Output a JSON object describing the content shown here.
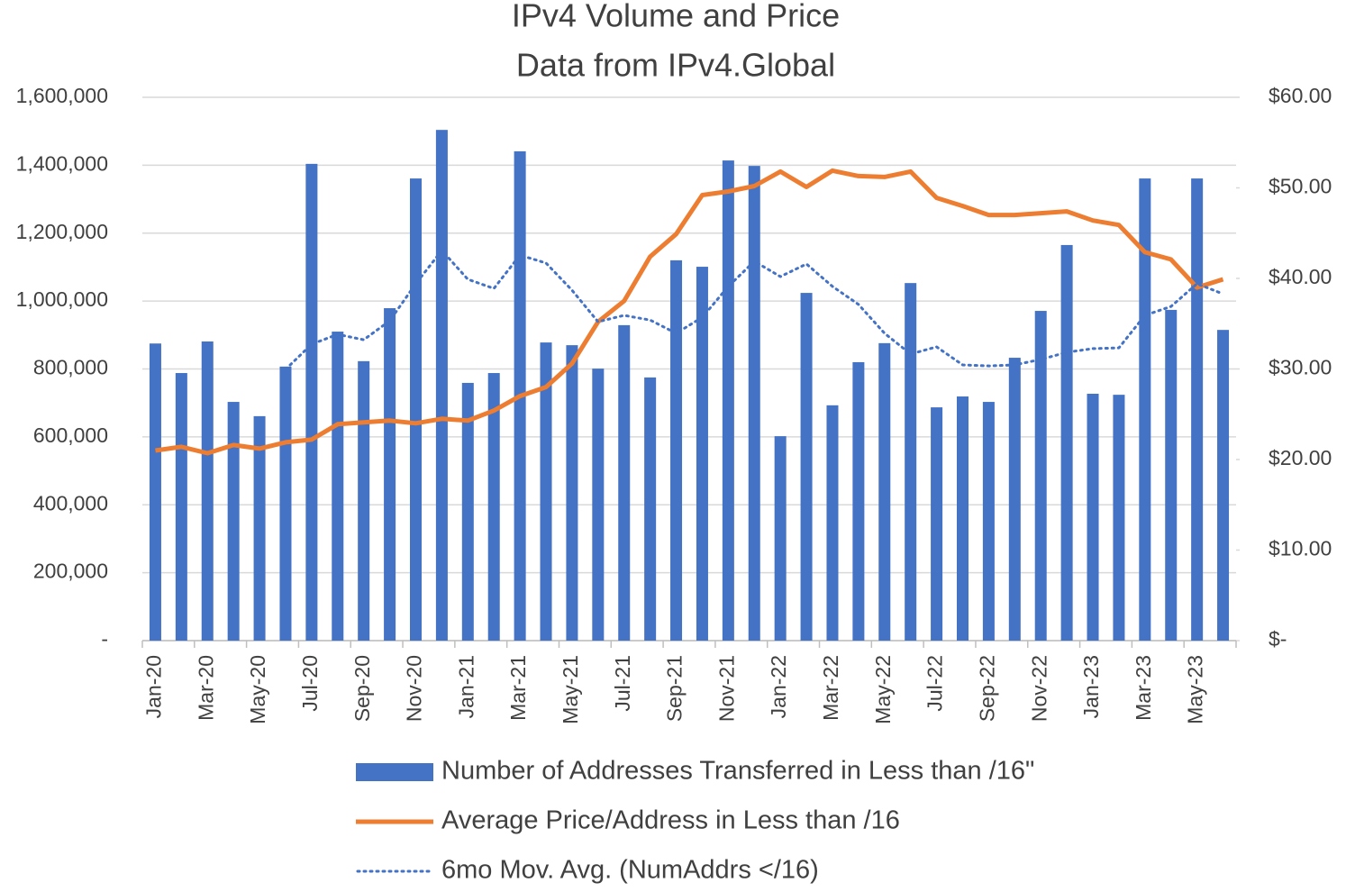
{
  "chart_data": {
    "type": "bar_line",
    "title": "IPv4 Volume and Price",
    "subtitle": "Data from IPv4.Global",
    "categories": [
      "Jan-20",
      null,
      "Mar-20",
      null,
      "May-20",
      null,
      "Jul-20",
      null,
      "Sep-20",
      null,
      "Nov-20",
      null,
      "Jan-21",
      null,
      "Mar-21",
      null,
      "May-21",
      null,
      "Jul-21",
      null,
      "Sep-21",
      null,
      "Nov-21",
      null,
      "Jan-22",
      null,
      "Mar-22",
      null,
      "May-22",
      null,
      "Jul-22",
      null,
      "Sep-22",
      null,
      "Nov-22",
      null,
      "Jan-23",
      null,
      "Mar-23",
      null,
      "May-23",
      null
    ],
    "series": [
      {
        "name": "Number of Addresses Transferred in Less than /16\"",
        "type": "bar",
        "color": "#4472c4",
        "values": [
          875000,
          788000,
          881000,
          703000,
          661000,
          807000,
          1404000,
          910000,
          823000,
          979000,
          1361000,
          1504000,
          759000,
          788000,
          1441000,
          878000,
          870000,
          801000,
          929000,
          775000,
          1120000,
          1101000,
          1414000,
          1398000,
          602000,
          1024000,
          693000,
          820000,
          876000,
          1053000,
          687000,
          719000,
          703000,
          833000,
          971000,
          1165000,
          727000,
          724000,
          1361000,
          974000,
          1361000,
          915000
        ]
      },
      {
        "name": "Average Price/Address in Less than /16",
        "type": "line",
        "axis": "y2",
        "color": "#ed7d31",
        "values": [
          21.0,
          21.4,
          20.7,
          21.6,
          21.2,
          21.9,
          22.2,
          23.9,
          24.1,
          24.3,
          24.0,
          24.5,
          24.3,
          25.4,
          27.0,
          28.0,
          30.6,
          35.2,
          37.5,
          42.4,
          44.9,
          49.2,
          49.6,
          50.2,
          51.8,
          50.1,
          51.9,
          51.3,
          51.2,
          51.8,
          48.9,
          48.0,
          47.0,
          47.0,
          47.2,
          47.4,
          46.4,
          45.9,
          42.9,
          42.1,
          39.0,
          39.9
        ]
      },
      {
        "name": "6mo Mov. Avg. (NumAddrs </16)",
        "type": "dotted",
        "color": "#4472c4",
        "values": [
          null,
          null,
          null,
          null,
          null,
          799000,
          873000,
          902000,
          886000,
          942000,
          1051000,
          1149000,
          1064000,
          1037000,
          1135000,
          1112000,
          1032000,
          939000,
          958000,
          944000,
          905000,
          952000,
          1043000,
          1117000,
          1072000,
          1109000,
          1043000,
          990000,
          905000,
          844000,
          865000,
          812000,
          809000,
          812000,
          828000,
          849000,
          860000,
          862000,
          958000,
          984000,
          1051000,
          1021000
        ]
      }
    ],
    "ylim": [
      0,
      1600000
    ],
    "yticks": [
      {
        "value": 0,
        "label": "-"
      },
      {
        "value": 200000,
        "label": "200,000"
      },
      {
        "value": 400000,
        "label": "400,000"
      },
      {
        "value": 600000,
        "label": "600,000"
      },
      {
        "value": 800000,
        "label": "800,000"
      },
      {
        "value": 1000000,
        "label": "1,000,000"
      },
      {
        "value": 1200000,
        "label": "1,200,000"
      },
      {
        "value": 1400000,
        "label": "1,400,000"
      },
      {
        "value": 1600000,
        "label": "1,600,000"
      }
    ],
    "y2lim": [
      0,
      60
    ],
    "y2ticks": [
      {
        "value": 0,
        "label": "$-"
      },
      {
        "value": 10,
        "label": "$10.00"
      },
      {
        "value": 20,
        "label": "$20.00"
      },
      {
        "value": 30,
        "label": "$30.00"
      },
      {
        "value": 40,
        "label": "$40.00"
      },
      {
        "value": 50,
        "label": "$50.00"
      },
      {
        "value": 60,
        "label": "$60.00"
      }
    ],
    "grid": true,
    "legend": "bottom"
  }
}
